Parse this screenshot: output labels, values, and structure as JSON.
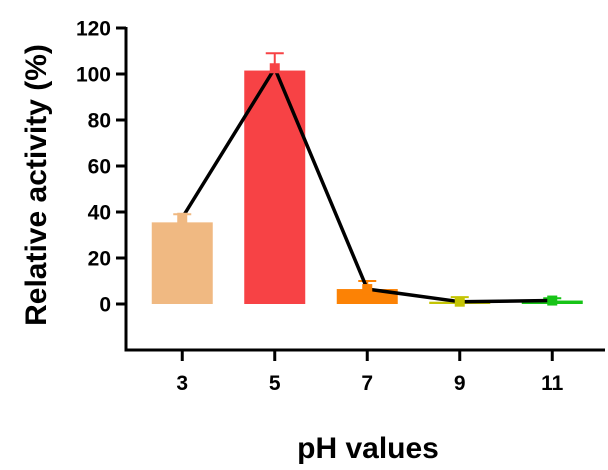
{
  "chart_data": {
    "type": "bar",
    "title": "",
    "xlabel": "pH values",
    "ylabel": "Relative activity (%)",
    "categories": [
      "3",
      "5",
      "7",
      "9",
      "11"
    ],
    "values": [
      35.5,
      101.5,
      6.5,
      1.0,
      1.5
    ],
    "errors": [
      3.5,
      7.5,
      3.5,
      2.0,
      1.0
    ],
    "line_values": [
      37.5,
      102.5,
      6.5,
      1.0,
      1.5
    ],
    "bar_colors": [
      "#f0b982",
      "#f74245",
      "#fc8205",
      "#c4c404",
      "#17c417"
    ],
    "line_color": "#000000",
    "ylim": [
      -20,
      120
    ],
    "yticks": [
      0,
      20,
      40,
      60,
      80,
      100,
      120
    ],
    "grid": false,
    "legend": "none"
  }
}
